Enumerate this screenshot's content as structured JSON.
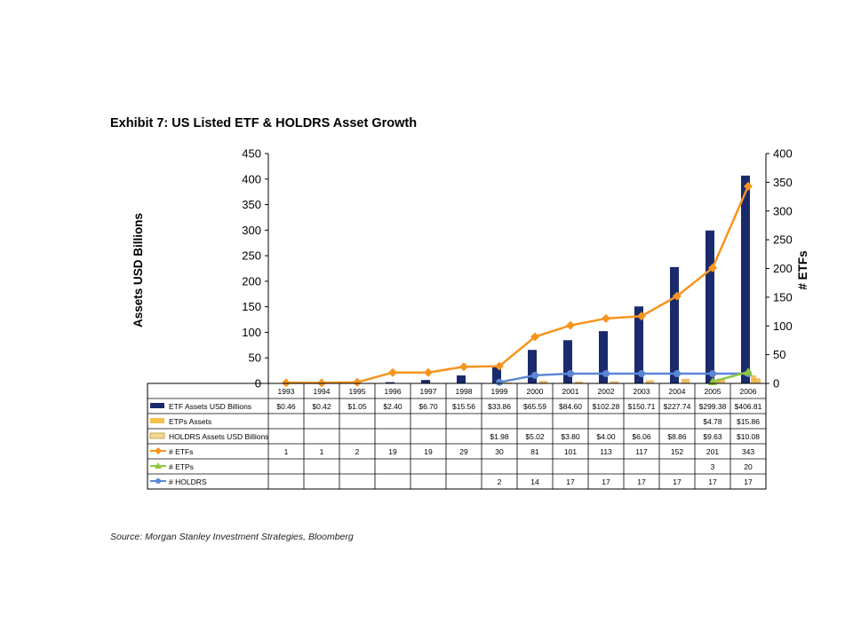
{
  "title": "Exhibit 7: US Listed ETF & HOLDRS Asset Growth",
  "source": "Source: Morgan Stanley Investment Strategies, Bloomberg",
  "colors": {
    "etf_assets": "#1a2a6c",
    "etps_assets": "#f5c14a",
    "holdrs_assets": "#f0b24f",
    "num_etfs": "#f7941d",
    "num_etps": "#8dc63f",
    "num_holdrs": "#5b86d6"
  },
  "chart_data": {
    "type": "bar",
    "title": "Exhibit 7: US Listed ETF & HOLDRS Asset Growth",
    "categories": [
      "1993",
      "1994",
      "1995",
      "1996",
      "1997",
      "1998",
      "1999",
      "2000",
      "2001",
      "2002",
      "2003",
      "2004",
      "2005",
      "2006"
    ],
    "ylabel": "Assets USD Billions",
    "y2label": "# ETFs",
    "ylim": [
      0,
      450
    ],
    "y2lim": [
      0,
      400
    ],
    "yticks": [
      "0",
      "50",
      "100",
      "150",
      "200",
      "250",
      "300",
      "350",
      "400",
      "450"
    ],
    "y2ticks": [
      "0",
      "50",
      "100",
      "150",
      "200",
      "250",
      "300",
      "350",
      "400"
    ],
    "legend": "data table below plot",
    "series": [
      {
        "name": "ETF Assets USD Billions",
        "type": "bar",
        "axis": "left",
        "values": [
          0.46,
          0.42,
          1.05,
          2.4,
          6.7,
          15.56,
          33.86,
          65.59,
          84.6,
          102.28,
          150.71,
          227.74,
          299.38,
          406.81
        ],
        "labels": [
          "$0.46",
          "$0.42",
          "$1.05",
          "$2.40",
          "$6.70",
          "$15.56",
          "$33.86",
          "$65.59",
          "$84.60",
          "$102.28",
          "$150.71",
          "$227.74",
          "$299.38",
          "$406.81"
        ]
      },
      {
        "name": "ETPs Assets",
        "type": "bar",
        "axis": "left",
        "values": [
          null,
          null,
          null,
          null,
          null,
          null,
          null,
          null,
          null,
          null,
          null,
          null,
          4.78,
          15.86
        ],
        "labels": [
          "",
          "",
          "",
          "",
          "",
          "",
          "",
          "",
          "",
          "",
          "",
          "",
          "$4.78",
          "$15.86"
        ]
      },
      {
        "name": "HOLDRS Assets USD Billions",
        "type": "bar",
        "axis": "left",
        "values": [
          null,
          null,
          null,
          null,
          null,
          null,
          1.98,
          5.02,
          3.8,
          4.0,
          6.06,
          8.86,
          9.63,
          10.08
        ],
        "labels": [
          "",
          "",
          "",
          "",
          "",
          "",
          "$1.98",
          "$5.02",
          "$3.80",
          "$4.00",
          "$6.06",
          "$8.86",
          "$9.63",
          "$10.08"
        ]
      },
      {
        "name": "# ETFs",
        "type": "line",
        "axis": "right",
        "values": [
          1,
          1,
          2,
          19,
          19,
          29,
          30,
          81,
          101,
          113,
          117,
          152,
          201,
          343
        ],
        "labels": [
          "1",
          "1",
          "2",
          "19",
          "19",
          "29",
          "30",
          "81",
          "101",
          "113",
          "117",
          "152",
          "201",
          "343"
        ]
      },
      {
        "name": "# ETPs",
        "type": "line",
        "axis": "right",
        "values": [
          null,
          null,
          null,
          null,
          null,
          null,
          null,
          null,
          null,
          null,
          null,
          null,
          3,
          20
        ],
        "labels": [
          "",
          "",
          "",
          "",
          "",
          "",
          "",
          "",
          "",
          "",
          "",
          "",
          "3",
          "20"
        ]
      },
      {
        "name": "# HOLDRS",
        "type": "line",
        "axis": "right",
        "values": [
          null,
          null,
          null,
          null,
          null,
          null,
          2,
          14,
          17,
          17,
          17,
          17,
          17,
          17
        ],
        "labels": [
          "",
          "",
          "",
          "",
          "",
          "",
          "2",
          "14",
          "17",
          "17",
          "17",
          "17",
          "17",
          "17"
        ]
      }
    ]
  }
}
